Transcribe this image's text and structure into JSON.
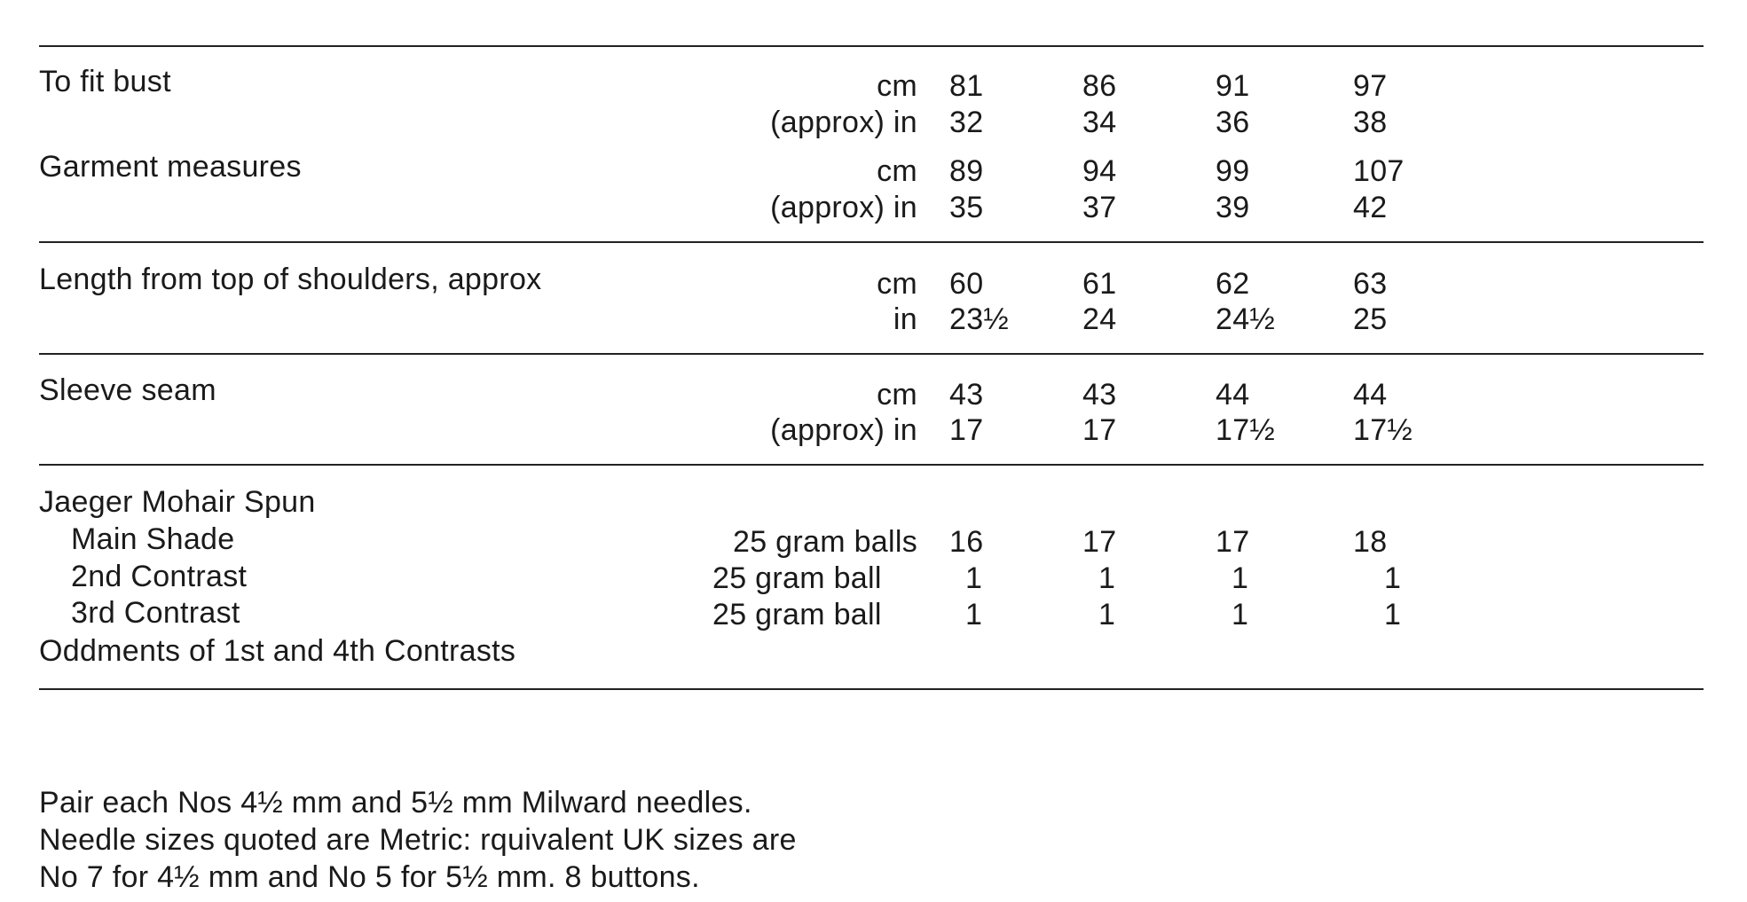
{
  "sections": [
    {
      "rows": [
        {
          "label": "To fit bust",
          "unit": "cm",
          "values": [
            "81",
            "86",
            "91",
            "97"
          ]
        },
        {
          "label": "",
          "unit": "(approx)  in",
          "values": [
            "32",
            "34",
            "36",
            "38"
          ]
        },
        {
          "label": "Garment measures",
          "unit": "cm",
          "values": [
            "89",
            "94",
            "99",
            "107"
          ]
        },
        {
          "label": "",
          "unit": "(approx)  in",
          "values": [
            "35",
            "37",
            "39",
            "42"
          ]
        }
      ]
    },
    {
      "rows": [
        {
          "label": "Length from top of shoulders, approx",
          "unit": "cm",
          "values": [
            "60",
            "61",
            "62",
            "63"
          ]
        },
        {
          "label": "",
          "unit": "in",
          "values": [
            "23½",
            "24",
            "24½",
            "25"
          ]
        }
      ]
    },
    {
      "rows": [
        {
          "label": "Sleeve seam",
          "unit": "cm",
          "values": [
            "43",
            "43",
            "44",
            "44"
          ]
        },
        {
          "label": "",
          "unit": "(approx)  in",
          "values": [
            "17",
            "17",
            "17½",
            "17½"
          ]
        }
      ]
    },
    {
      "rows": [
        {
          "label": "Jaeger Mohair Spun",
          "unit": "",
          "values": [
            "",
            "",
            "",
            ""
          ]
        },
        {
          "label": "Main Shade",
          "unit": "25 gram balls",
          "values": [
            "16",
            "17",
            "17",
            "18"
          ]
        },
        {
          "label": "2nd Contrast",
          "unit": "25 gram ball",
          "values": [
            "1",
            "1",
            "1",
            "1"
          ]
        },
        {
          "label": "3rd Contrast",
          "unit": "25 gram ball",
          "values": [
            "1",
            "1",
            "1",
            "1"
          ]
        },
        {
          "label": "Oddments of 1st and 4th Contrasts",
          "unit": "",
          "values": [
            "",
            "",
            "",
            ""
          ]
        }
      ]
    }
  ],
  "notes": [
    "Pair each Nos 4½ mm and 5½ mm Milward needles.",
    "Needle sizes quoted are Metric: rquivalent UK sizes are",
    "No 7 for 4½ mm and No 5 for 5½ mm. 8 buttons."
  ]
}
